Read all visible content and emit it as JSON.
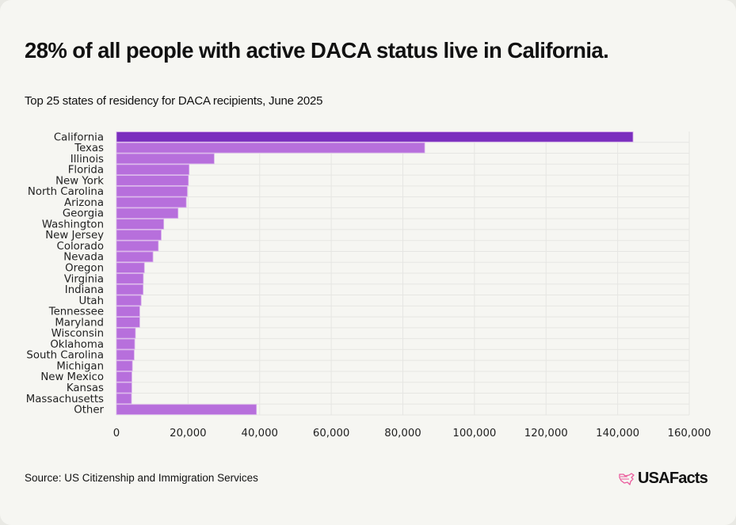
{
  "header": {
    "title": "28% of all people with active DACA status live in California.",
    "subtitle": "Top 25 states of residency for DACA recipients, June 2025"
  },
  "footer": {
    "source": "Source: US Citizenship and Immigration Services",
    "logo_text": "USAFacts",
    "logo_icon": "usa-map-icon"
  },
  "colors": {
    "highlight_bar": "#7b2fbe",
    "bar": "#b76fdc",
    "bar_border": "#d9b0ec",
    "grid": "#e6e6e3",
    "logo_accent": "#ea5a9c"
  },
  "chart_data": {
    "type": "bar",
    "orientation": "horizontal",
    "title": "28% of all people with active DACA status live in California.",
    "subtitle": "Top 25 states of residency for DACA recipients, June 2025",
    "xlabel": "",
    "ylabel": "",
    "xlim": [
      0,
      160000
    ],
    "xticks": [
      0,
      20000,
      40000,
      60000,
      80000,
      100000,
      120000,
      140000,
      160000
    ],
    "xtick_labels": [
      "0",
      "20,000",
      "40,000",
      "60,000",
      "80,000",
      "100,000",
      "120,000",
      "140,000",
      "160,000"
    ],
    "grid": true,
    "highlight": "California",
    "categories": [
      "California",
      "Texas",
      "Illinois",
      "Florida",
      "New York",
      "North Carolina",
      "Arizona",
      "Georgia",
      "Washington",
      "New Jersey",
      "Colorado",
      "Nevada",
      "Oregon",
      "Virginia",
      "Indiana",
      "Utah",
      "Tennessee",
      "Maryland",
      "Wisconsin",
      "Oklahoma",
      "South Carolina",
      "Michigan",
      "New Mexico",
      "Kansas",
      "Massachusetts",
      "Other"
    ],
    "values": [
      144300,
      86100,
      27300,
      20300,
      20100,
      19800,
      19500,
      17200,
      13200,
      12500,
      11700,
      10200,
      7800,
      7500,
      7450,
      6900,
      6500,
      6500,
      5300,
      5100,
      4950,
      4450,
      4300,
      4280,
      4200,
      39100
    ]
  }
}
